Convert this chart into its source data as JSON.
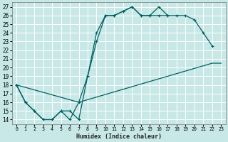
{
  "title": "",
  "xlabel": "Humidex (Indice chaleur)",
  "bg_color": "#c8e8e8",
  "line_color": "#006060",
  "grid_color": "#ffffff",
  "xlim": [
    -0.5,
    23.5
  ],
  "ylim": [
    13.5,
    27.5
  ],
  "xticks": [
    0,
    1,
    2,
    3,
    4,
    5,
    6,
    7,
    8,
    9,
    10,
    11,
    12,
    13,
    14,
    15,
    16,
    17,
    18,
    19,
    20,
    21,
    22,
    23
  ],
  "yticks": [
    14,
    15,
    16,
    17,
    18,
    19,
    20,
    21,
    22,
    23,
    24,
    25,
    26,
    27
  ],
  "line1_x": [
    0,
    1,
    2,
    3,
    4,
    5,
    6,
    7,
    8,
    9,
    10,
    11,
    12,
    13,
    14,
    15,
    16,
    17
  ],
  "line1_y": [
    18,
    16,
    15,
    14,
    14,
    15,
    14,
    16,
    19,
    23,
    26,
    26,
    26.5,
    27,
    26,
    26,
    27,
    26
  ],
  "line2_x": [
    0,
    1,
    2,
    3,
    4,
    5,
    6,
    7,
    8,
    9,
    10,
    11,
    12,
    13,
    14,
    15,
    16,
    17,
    18,
    19,
    20,
    21,
    22
  ],
  "line2_y": [
    18,
    16,
    15,
    14,
    14,
    15,
    15,
    14,
    19,
    24,
    26,
    26,
    26.5,
    27,
    26,
    26,
    26,
    26,
    26,
    26,
    25.5,
    24,
    22.5
  ],
  "line3_x": [
    0,
    7,
    22,
    23
  ],
  "line3_y": [
    18,
    16,
    20.5,
    20.5
  ]
}
